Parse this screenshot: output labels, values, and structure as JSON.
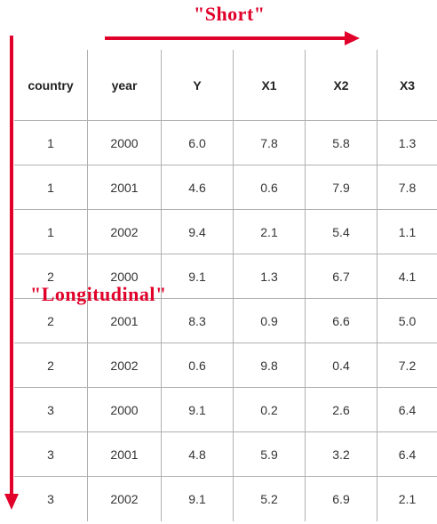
{
  "table": {
    "headers": [
      "country",
      "year",
      "Y",
      "X1",
      "X2",
      "X3"
    ],
    "rows": [
      [
        "1",
        "2000",
        "6.0",
        "7.8",
        "5.8",
        "1.3"
      ],
      [
        "1",
        "2001",
        "4.6",
        "0.6",
        "7.9",
        "7.8"
      ],
      [
        "1",
        "2002",
        "9.4",
        "2.1",
        "5.4",
        "1.1"
      ],
      [
        "2",
        "2000",
        "9.1",
        "1.3",
        "6.7",
        "4.1"
      ],
      [
        "2",
        "2001",
        "8.3",
        "0.9",
        "6.6",
        "5.0"
      ],
      [
        "2",
        "2002",
        "0.6",
        "9.8",
        "0.4",
        "7.2"
      ],
      [
        "3",
        "2000",
        "9.1",
        "0.2",
        "2.6",
        "6.4"
      ],
      [
        "3",
        "2001",
        "4.8",
        "5.9",
        "3.2",
        "6.4"
      ],
      [
        "3",
        "2002",
        "9.1",
        "5.2",
        "6.9",
        "2.1"
      ]
    ]
  },
  "annotations": {
    "short_label": "\"Short\"",
    "longitudinal_label": "\"Longitudinal\"",
    "color": "#e0002a"
  }
}
